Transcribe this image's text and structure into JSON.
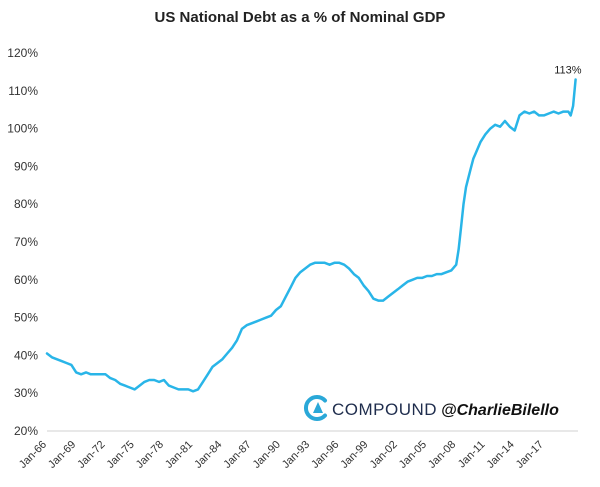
{
  "chart_data": {
    "type": "line",
    "title": "US National Debt as a % of Nominal GDP",
    "xlabel": "",
    "ylabel": "",
    "ylim": [
      20,
      120
    ],
    "yticks": [
      "20%",
      "30%",
      "40%",
      "50%",
      "60%",
      "70%",
      "80%",
      "90%",
      "100%",
      "110%",
      "120%"
    ],
    "xticks": [
      "Jan-66",
      "Jan-69",
      "Jan-72",
      "Jan-75",
      "Jan-78",
      "Jan-81",
      "Jan-84",
      "Jan-87",
      "Jan-90",
      "Jan-93",
      "Jan-96",
      "Jan-99",
      "Jan-02",
      "Jan-05",
      "Jan-08",
      "Jan-11",
      "Jan-14",
      "Jan-17"
    ],
    "grid": false,
    "legend": "none",
    "line_color": "#29b5e8",
    "series": [
      {
        "x": [
          1966.0,
          1966.5,
          1967.0,
          1967.5,
          1968.0,
          1968.5,
          1969.0,
          1969.5,
          1970.0,
          1970.5,
          1971.0,
          1971.5,
          1972.0,
          1972.5,
          1973.0,
          1973.5,
          1974.0,
          1974.5,
          1975.0,
          1975.5,
          1976.0,
          1976.5,
          1977.0,
          1977.5,
          1978.0,
          1978.5,
          1979.0,
          1979.5,
          1980.0,
          1980.5,
          1981.0,
          1981.5,
          1982.0,
          1982.5,
          1983.0,
          1983.5,
          1984.0,
          1984.5,
          1985.0,
          1985.5,
          1986.0,
          1986.5,
          1987.0,
          1987.5,
          1988.0,
          1988.5,
          1989.0,
          1989.5,
          1990.0,
          1990.5,
          1991.0,
          1991.5,
          1992.0,
          1992.5,
          1993.0,
          1993.5,
          1994.0,
          1994.5,
          1995.0,
          1995.5,
          1996.0,
          1996.5,
          1997.0,
          1997.5,
          1998.0,
          1998.5,
          1999.0,
          1999.5,
          2000.0,
          2000.5,
          2001.0,
          2001.5,
          2002.0,
          2002.5,
          2003.0,
          2003.5,
          2004.0,
          2004.5,
          2005.0,
          2005.5,
          2006.0,
          2006.5,
          2007.0,
          2007.5,
          2008.0,
          2008.25,
          2008.5,
          2008.75,
          2009.0,
          2009.25,
          2009.5,
          2009.75,
          2010.0,
          2010.5,
          2011.0,
          2011.5,
          2012.0,
          2012.5,
          2013.0,
          2013.5,
          2014.0,
          2014.5,
          2015.0,
          2015.5,
          2016.0,
          2016.5,
          2017.0,
          2017.5,
          2018.0,
          2018.5,
          2019.0,
          2019.5,
          2019.75,
          2020.0,
          2020.25
        ],
        "y": [
          40.5,
          39.5,
          39.0,
          38.5,
          38.0,
          37.5,
          35.5,
          35.0,
          35.5,
          35.0,
          35.0,
          35.0,
          35.0,
          34.0,
          33.5,
          32.5,
          32.0,
          31.5,
          31.0,
          32.0,
          33.0,
          33.5,
          33.5,
          33.0,
          33.5,
          32.0,
          31.5,
          31.0,
          31.0,
          31.0,
          30.5,
          31.0,
          33.0,
          35.0,
          37.0,
          38.0,
          39.0,
          40.5,
          42.0,
          44.0,
          47.0,
          48.0,
          48.5,
          49.0,
          49.5,
          50.0,
          50.5,
          52.0,
          53.0,
          55.5,
          58.0,
          60.5,
          62.0,
          63.0,
          64.0,
          64.5,
          64.5,
          64.5,
          64.0,
          64.5,
          64.5,
          64.0,
          63.0,
          61.5,
          60.5,
          58.5,
          57.0,
          55.0,
          54.5,
          54.5,
          55.5,
          56.5,
          57.5,
          58.5,
          59.5,
          60.0,
          60.5,
          60.5,
          61.0,
          61.0,
          61.5,
          61.5,
          62.0,
          62.5,
          64.0,
          68.0,
          74.0,
          80.0,
          84.5,
          87.0,
          89.5,
          92.0,
          93.5,
          96.5,
          98.5,
          100.0,
          101.0,
          100.5,
          102.0,
          100.5,
          99.5,
          103.5,
          104.5,
          104.0,
          104.5,
          103.5,
          103.5,
          104.0,
          104.5,
          104.0,
          104.5,
          104.5,
          103.5,
          106.0,
          113.0
        ]
      }
    ],
    "annotations": [
      {
        "text": "113%",
        "x": 2020.25,
        "y": 113
      }
    ]
  },
  "watermark": {
    "brand": "COMPOUND",
    "handle": "@CharlieBilello",
    "brand_color": "#1f2d4d",
    "logo_color": "#2aa8d8"
  }
}
